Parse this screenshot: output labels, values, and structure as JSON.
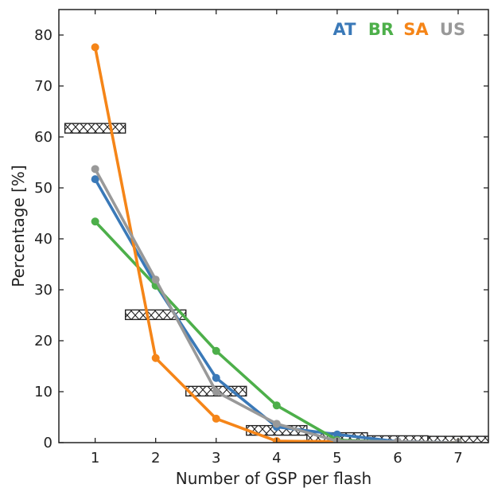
{
  "chart_data": {
    "type": "line",
    "title": "",
    "xlabel": "Number of GSP per flash",
    "ylabel": "Percentage [%]",
    "xlim": [
      0.4,
      7.5
    ],
    "ylim": [
      0,
      85
    ],
    "xticks": [
      1,
      2,
      3,
      4,
      5,
      6,
      7
    ],
    "yticks": [
      0,
      10,
      20,
      30,
      40,
      50,
      60,
      70,
      80
    ],
    "grid": false,
    "legend_position": "top-right",
    "x": [
      1,
      2,
      3,
      4,
      5,
      6,
      7
    ],
    "series": [
      {
        "name": "AT",
        "color": "#3a79b8",
        "values": [
          51.7,
          31.0,
          12.7,
          3.1,
          1.6,
          0.2,
          0.0
        ]
      },
      {
        "name": "BR",
        "color": "#4daf4a",
        "values": [
          43.4,
          30.8,
          18.0,
          7.3,
          0.5,
          0.1,
          0.0
        ]
      },
      {
        "name": "SA",
        "color": "#f58518",
        "values": [
          77.6,
          16.6,
          4.7,
          0.3,
          0.2,
          0.1,
          0.0
        ]
      },
      {
        "name": "US",
        "color": "#999999",
        "values": [
          53.7,
          32.0,
          10.0,
          3.7,
          0.3,
          0.2,
          0.0
        ]
      }
    ],
    "hatched_bars": {
      "pattern": "cross-hatch",
      "values": [
        61.7,
        25.1,
        10.1,
        2.4,
        1.0,
        0.4,
        0.3
      ]
    }
  }
}
